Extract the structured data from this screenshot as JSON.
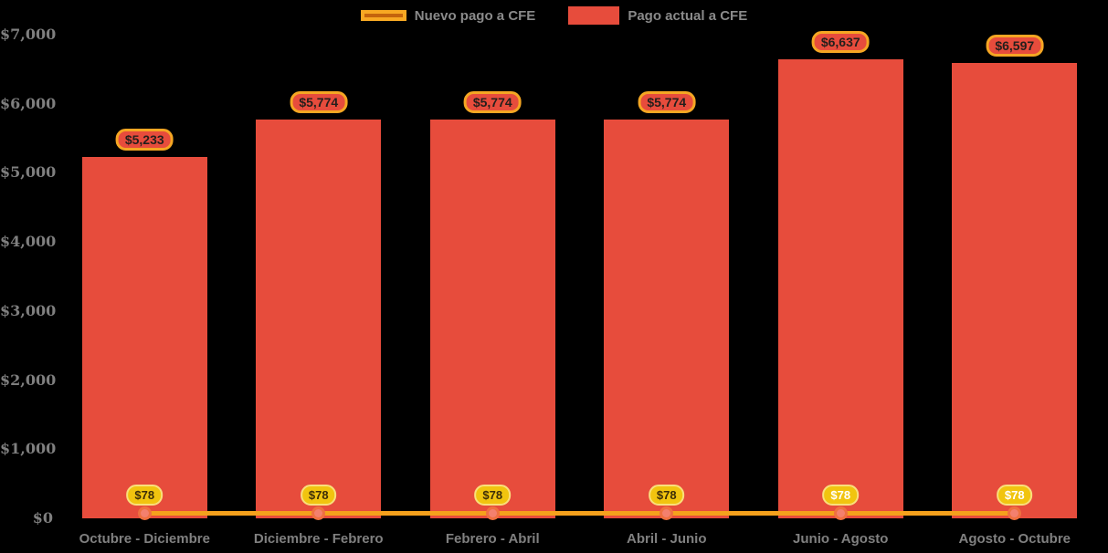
{
  "chart_data": {
    "type": "bar",
    "title": "",
    "background": "#000000",
    "grid": false,
    "categories": [
      "Octubre - Diciembre",
      "Diciembre - Febrero",
      "Febrero - Abril",
      "Abril - Junio",
      "Junio - Agosto",
      "Agosto - Octubre"
    ],
    "series": [
      {
        "name": "Nuevo pago a CFE",
        "type": "line",
        "values": [
          78,
          78,
          78,
          78,
          78,
          78
        ],
        "labels": [
          "$78",
          "$78",
          "$78",
          "$78",
          "$78",
          "$78"
        ],
        "label_text_colors": [
          "#3d2e08",
          "#3d2e08",
          "#3d2e08",
          "#3d2e08",
          "#ffffff",
          "#ffffff"
        ],
        "color": "#f5a11c",
        "marker_fill": "#f4806e",
        "marker_stroke": "#ef7040",
        "label_fill": "#f1c40f",
        "label_border": "#f9df7b"
      },
      {
        "name": "Pago actual a CFE",
        "type": "bar",
        "values": [
          5233,
          5774,
          5774,
          5774,
          6637,
          6597
        ],
        "labels": [
          "$5,233",
          "$5,774",
          "$5,774",
          "$5,774",
          "$6,637",
          "$6,597"
        ],
        "color": "#e74c3c",
        "label_fill": "#e74c3c",
        "label_border": "#f5a623",
        "label_text_color": "#241f1c"
      }
    ],
    "yaxis": {
      "min": 0,
      "max": 7000,
      "step": 1000,
      "tick_labels": [
        "$0",
        "$1,000",
        "$2,000",
        "$3,000",
        "$4,000",
        "$5,000",
        "$6,000",
        "$7,000"
      ],
      "label_color": "#7f7f7f"
    },
    "xaxis": {
      "label_color": "#808080"
    },
    "legend": {
      "position": "top-center",
      "text_color": "#8a8a8a",
      "items": [
        {
          "label": "Nuevo pago a CFE",
          "swatch_fill": "#c4640d",
          "swatch_border": "#f7a823"
        },
        {
          "label": "Pago actual a CFE",
          "swatch_fill": "#e74c3c"
        }
      ]
    }
  }
}
